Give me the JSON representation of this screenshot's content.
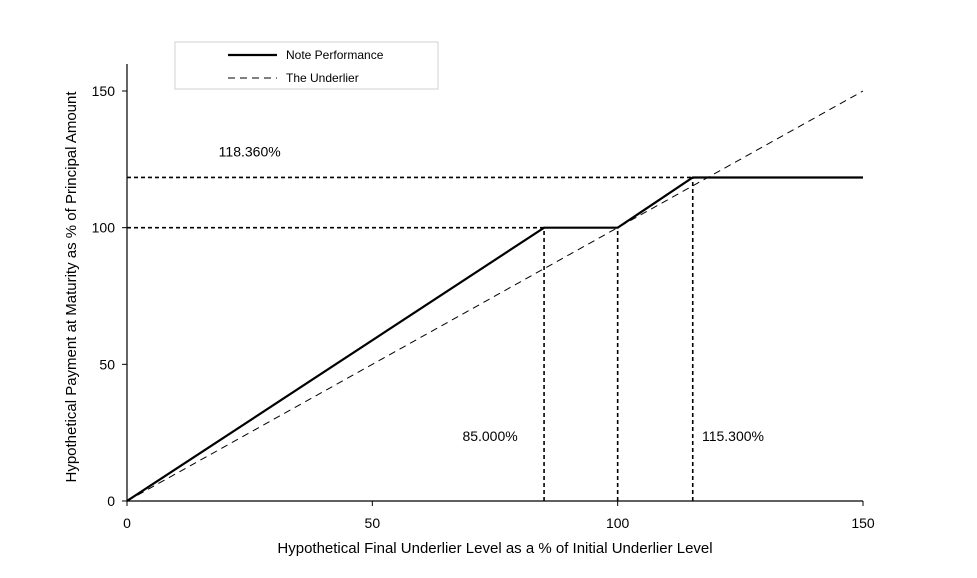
{
  "chart_data": {
    "type": "line",
    "xlabel": "Hypothetical Final Underlier Level as a % of Initial Underlier Level",
    "ylabel": "Hypothetical Payment at Maturity as % of Principal Amount",
    "xlim": [
      0,
      150
    ],
    "ylim": [
      0,
      160
    ],
    "xticks": [
      "0",
      "50",
      "100",
      "150"
    ],
    "yticks": [
      "0",
      "50",
      "100",
      "150"
    ],
    "grid": false,
    "legend_position": "top-left",
    "series": [
      {
        "name": "Note Performance",
        "style": "solid",
        "color": "#000000",
        "points": [
          [
            0,
            0
          ],
          [
            85,
            100
          ],
          [
            100,
            100
          ],
          [
            115.3,
            118.36
          ],
          [
            150,
            118.36
          ]
        ]
      },
      {
        "name": "The Underlier",
        "style": "dashed",
        "color": "#000000",
        "points": [
          [
            0,
            0
          ],
          [
            150,
            150
          ]
        ]
      }
    ],
    "reference_lines": [
      {
        "orientation": "horizontal",
        "y": 118.36,
        "x_from": 0,
        "x_to": 115.3
      },
      {
        "orientation": "horizontal",
        "y": 100,
        "x_from": 0,
        "x_to": 85
      },
      {
        "orientation": "vertical",
        "x": 85,
        "y_from": 0,
        "y_to": 100
      },
      {
        "orientation": "vertical",
        "x": 100,
        "y_from": 0,
        "y_to": 100
      },
      {
        "orientation": "vertical",
        "x": 115.3,
        "y_from": 0,
        "y_to": 118.36
      }
    ],
    "annotations": [
      {
        "text": "118.360%",
        "x": 25,
        "y": 126
      },
      {
        "text": "85.000%",
        "x": 74,
        "y": 22
      },
      {
        "text": "115.300%",
        "x": 123.5,
        "y": 22
      }
    ]
  }
}
